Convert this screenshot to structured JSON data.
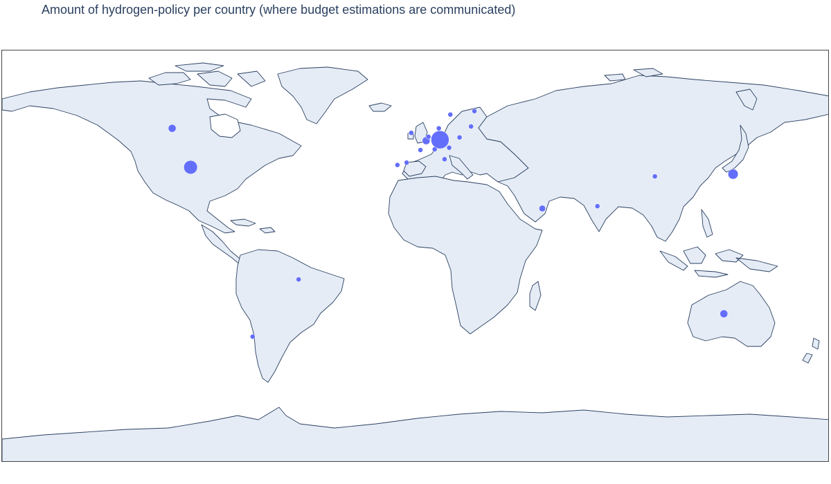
{
  "title": "Amount of hydrogen-policy per country (where budget estimations are communicated)",
  "colors": {
    "marker": "#636efa",
    "land": "#e5ecf6",
    "coast": "#2a3f5f",
    "title": "#2a3f5f"
  },
  "chart_data": {
    "type": "scatter",
    "projection": "equirectangular",
    "title": "Amount of hydrogen-policy per country (where budget estimations are communicated)",
    "points": [
      {
        "lon": -106,
        "lat": 56,
        "value": 3
      },
      {
        "lon": -98,
        "lat": 39,
        "value": 9
      },
      {
        "lon": -51,
        "lat": -10,
        "value": 1
      },
      {
        "lon": -71,
        "lat": -35,
        "value": 1
      },
      {
        "lon": -8,
        "lat": 40,
        "value": 1
      },
      {
        "lon": -4,
        "lat": 41,
        "value": 1
      },
      {
        "lon": -2,
        "lat": 54,
        "value": 1
      },
      {
        "lon": 2,
        "lat": 46.5,
        "value": 1
      },
      {
        "lon": 4.5,
        "lat": 50.6,
        "value": 3
      },
      {
        "lon": 5.5,
        "lat": 52.3,
        "value": 1
      },
      {
        "lon": 10,
        "lat": 56,
        "value": 1
      },
      {
        "lon": 10.5,
        "lat": 51,
        "value": 16
      },
      {
        "lon": 8.2,
        "lat": 46.8,
        "value": 1
      },
      {
        "lon": 12.5,
        "lat": 42.5,
        "value": 1
      },
      {
        "lon": 14.5,
        "lat": 47.5,
        "value": 1
      },
      {
        "lon": 19,
        "lat": 52,
        "value": 1
      },
      {
        "lon": 15,
        "lat": 62,
        "value": 1
      },
      {
        "lon": 25.5,
        "lat": 63.5,
        "value": 1
      },
      {
        "lon": 24,
        "lat": 56.8,
        "value": 1
      },
      {
        "lon": 55,
        "lat": 21,
        "value": 2
      },
      {
        "lon": 79,
        "lat": 22,
        "value": 1
      },
      {
        "lon": 104,
        "lat": 35,
        "value": 1
      },
      {
        "lon": 138,
        "lat": 36,
        "value": 5
      },
      {
        "lon": 134,
        "lat": -25,
        "value": 3
      }
    ]
  }
}
